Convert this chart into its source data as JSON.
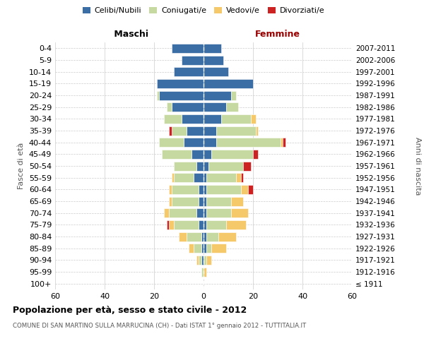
{
  "age_groups": [
    "100+",
    "95-99",
    "90-94",
    "85-89",
    "80-84",
    "75-79",
    "70-74",
    "65-69",
    "60-64",
    "55-59",
    "50-54",
    "45-49",
    "40-44",
    "35-39",
    "30-34",
    "25-29",
    "20-24",
    "15-19",
    "10-14",
    "5-9",
    "0-4"
  ],
  "birth_years": [
    "≤ 1911",
    "1912-1916",
    "1917-1921",
    "1922-1926",
    "1927-1931",
    "1932-1936",
    "1937-1941",
    "1942-1946",
    "1947-1951",
    "1952-1956",
    "1957-1961",
    "1962-1966",
    "1967-1971",
    "1972-1976",
    "1977-1981",
    "1982-1986",
    "1987-1991",
    "1992-1996",
    "1997-2001",
    "2002-2006",
    "2007-2011"
  ],
  "maschi": {
    "celibi": [
      0,
      0,
      1,
      1,
      1,
      2,
      3,
      2,
      2,
      4,
      3,
      5,
      8,
      7,
      9,
      13,
      18,
      19,
      12,
      9,
      13
    ],
    "coniugati": [
      0,
      1,
      1,
      3,
      6,
      10,
      11,
      11,
      11,
      8,
      9,
      12,
      10,
      6,
      7,
      2,
      1,
      0,
      0,
      0,
      0
    ],
    "vedovi": [
      0,
      0,
      1,
      2,
      3,
      2,
      2,
      1,
      1,
      1,
      0,
      0,
      0,
      0,
      0,
      0,
      0,
      0,
      0,
      0,
      0
    ],
    "divorziati": [
      0,
      0,
      0,
      0,
      0,
      1,
      0,
      0,
      0,
      0,
      0,
      0,
      0,
      1,
      0,
      0,
      0,
      0,
      0,
      0,
      0
    ]
  },
  "femmine": {
    "nubili": [
      0,
      0,
      0,
      1,
      1,
      1,
      1,
      1,
      1,
      1,
      2,
      3,
      5,
      5,
      7,
      9,
      11,
      20,
      10,
      8,
      7
    ],
    "coniugate": [
      0,
      0,
      1,
      2,
      5,
      8,
      10,
      10,
      14,
      12,
      14,
      17,
      26,
      16,
      12,
      5,
      2,
      0,
      0,
      0,
      0
    ],
    "vedove": [
      0,
      1,
      2,
      6,
      7,
      8,
      7,
      5,
      3,
      2,
      0,
      0,
      1,
      1,
      2,
      0,
      0,
      0,
      0,
      0,
      0
    ],
    "divorziate": [
      0,
      0,
      0,
      0,
      0,
      0,
      0,
      0,
      2,
      1,
      3,
      2,
      1,
      0,
      0,
      0,
      0,
      0,
      0,
      0,
      0
    ]
  },
  "colors": {
    "celibi": "#3A6EA5",
    "coniugati": "#C5D9A0",
    "vedovi": "#F5C96A",
    "divorziati": "#CC2222"
  },
  "xlim": 60,
  "title": "Popolazione per età, sesso e stato civile - 2012",
  "subtitle": "COMUNE DI SAN MARTINO SULLA MARRUCINA (CH) - Dati ISTAT 1° gennaio 2012 - TUTTITALIA.IT",
  "ylabel_left": "Fasce di età",
  "ylabel_right": "Anni di nascita",
  "legend_labels": [
    "Celibi/Nubili",
    "Coniugati/e",
    "Vedovi/e",
    "Divorziati/e"
  ]
}
